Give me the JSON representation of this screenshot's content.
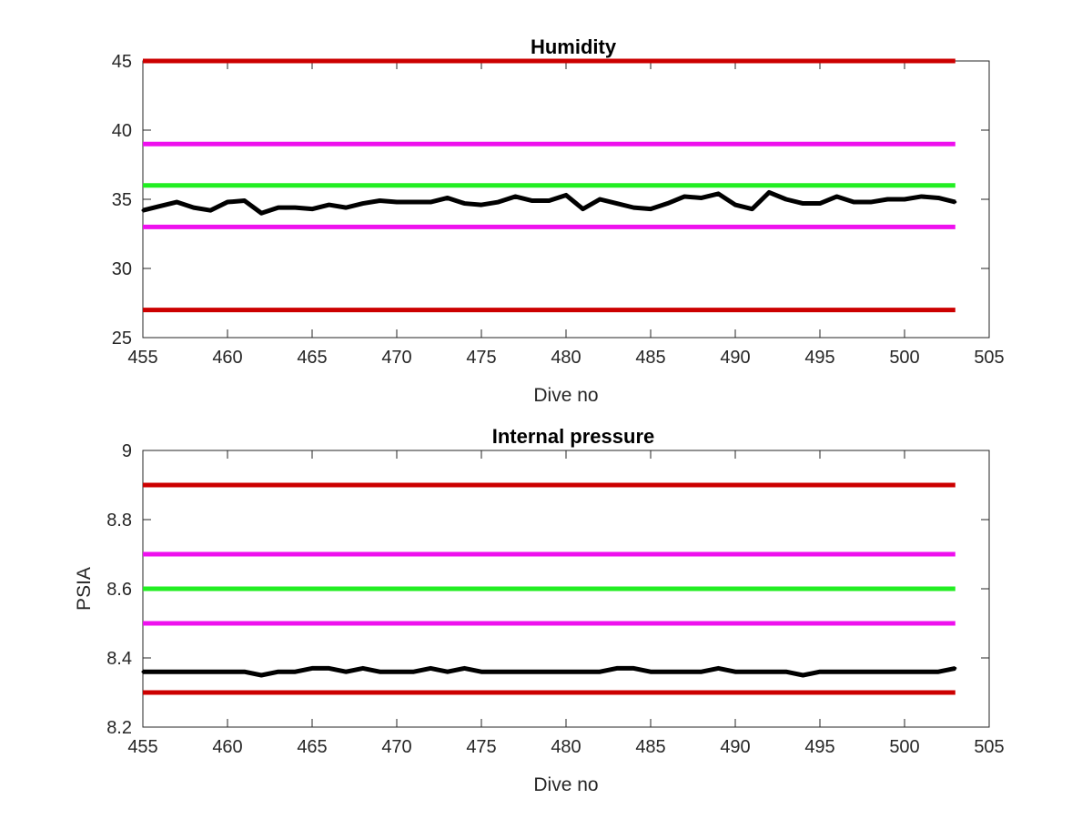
{
  "chart_data": [
    {
      "type": "line",
      "title": "Humidity",
      "xlabel": "Dive no",
      "ylabel": "",
      "xlim": [
        455,
        505
      ],
      "ylim": [
        25,
        45
      ],
      "xticks": [
        455,
        460,
        465,
        470,
        475,
        480,
        485,
        490,
        495,
        500,
        505
      ],
      "yticks": [
        25,
        30,
        35,
        40,
        45
      ],
      "grid": false,
      "series": [
        {
          "color": "#000000",
          "x": [
            455,
            456,
            457,
            458,
            459,
            460,
            461,
            462,
            463,
            464,
            465,
            466,
            467,
            468,
            469,
            470,
            471,
            472,
            473,
            474,
            475,
            476,
            477,
            478,
            479,
            480,
            481,
            482,
            483,
            484,
            485,
            486,
            487,
            488,
            489,
            490,
            491,
            492,
            493,
            494,
            495,
            496,
            497,
            498,
            499,
            500,
            501,
            502,
            503
          ],
          "values": [
            34.2,
            34.5,
            34.8,
            34.4,
            34.2,
            34.8,
            34.9,
            34.0,
            34.4,
            34.4,
            34.3,
            34.6,
            34.4,
            34.7,
            34.9,
            34.8,
            34.8,
            34.8,
            35.1,
            34.7,
            34.6,
            34.8,
            35.2,
            34.9,
            34.9,
            35.3,
            34.3,
            35.0,
            34.7,
            34.4,
            34.3,
            34.7,
            35.2,
            35.1,
            35.4,
            34.6,
            34.3,
            35.5,
            35.0,
            34.7,
            34.7,
            35.2,
            34.8,
            34.8,
            35.0,
            35.0,
            35.2,
            35.1,
            34.8
          ]
        }
      ],
      "reference_lines": [
        {
          "value": 45,
          "color": "#cc0000",
          "x": [
            455,
            503
          ]
        },
        {
          "value": 39,
          "color": "#ee10ee",
          "x": [
            455,
            503
          ]
        },
        {
          "value": 36,
          "color": "#22ee22",
          "x": [
            455,
            503
          ]
        },
        {
          "value": 33,
          "color": "#ee10ee",
          "x": [
            455,
            503
          ]
        },
        {
          "value": 27,
          "color": "#cc0000",
          "x": [
            455,
            503
          ]
        }
      ]
    },
    {
      "type": "line",
      "title": "Internal pressure",
      "xlabel": "Dive no",
      "ylabel": "PSIA",
      "xlim": [
        455,
        505
      ],
      "ylim": [
        8.2,
        9.0
      ],
      "xticks": [
        455,
        460,
        465,
        470,
        475,
        480,
        485,
        490,
        495,
        500,
        505
      ],
      "yticks": [
        8.2,
        8.4,
        8.6,
        8.8,
        9
      ],
      "ytick_labels": [
        "8.2",
        "8.4",
        "8.6",
        "8.8",
        "9"
      ],
      "grid": false,
      "series": [
        {
          "color": "#000000",
          "x": [
            455,
            456,
            457,
            458,
            459,
            460,
            461,
            462,
            463,
            464,
            465,
            466,
            467,
            468,
            469,
            470,
            471,
            472,
            473,
            474,
            475,
            476,
            477,
            478,
            479,
            480,
            481,
            482,
            483,
            484,
            485,
            486,
            487,
            488,
            489,
            490,
            491,
            492,
            493,
            494,
            495,
            496,
            497,
            498,
            499,
            500,
            501,
            502,
            503
          ],
          "values": [
            8.36,
            8.36,
            8.36,
            8.36,
            8.36,
            8.36,
            8.36,
            8.35,
            8.36,
            8.36,
            8.37,
            8.37,
            8.36,
            8.37,
            8.36,
            8.36,
            8.36,
            8.37,
            8.36,
            8.37,
            8.36,
            8.36,
            8.36,
            8.36,
            8.36,
            8.36,
            8.36,
            8.36,
            8.37,
            8.37,
            8.36,
            8.36,
            8.36,
            8.36,
            8.37,
            8.36,
            8.36,
            8.36,
            8.36,
            8.35,
            8.36,
            8.36,
            8.36,
            8.36,
            8.36,
            8.36,
            8.36,
            8.36,
            8.37
          ]
        }
      ],
      "reference_lines": [
        {
          "value": 8.9,
          "color": "#cc0000",
          "x": [
            455,
            503
          ]
        },
        {
          "value": 8.7,
          "color": "#ee10ee",
          "x": [
            455,
            503
          ]
        },
        {
          "value": 8.6,
          "color": "#22ee22",
          "x": [
            455,
            503
          ]
        },
        {
          "value": 8.5,
          "color": "#ee10ee",
          "x": [
            455,
            503
          ]
        },
        {
          "value": 8.3,
          "color": "#cc0000",
          "x": [
            455,
            503
          ]
        }
      ]
    }
  ]
}
